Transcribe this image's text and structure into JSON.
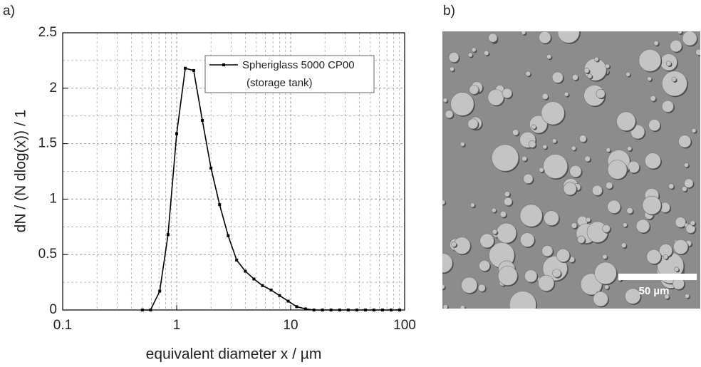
{
  "panels": [
    "a)",
    "b)"
  ],
  "chart_data": {
    "type": "line",
    "x_label": "equivalent diameter x / µm",
    "y_label": "dN / (N dlog(x)) / 1",
    "x": [
      0.5,
      0.59,
      0.71,
      0.84,
      1.0,
      1.19,
      1.41,
      1.68,
      2.0,
      2.38,
      2.83,
      3.36,
      4.0,
      4.76,
      5.66,
      6.73,
      8.0,
      9.51,
      11.3,
      13.5,
      16.0,
      19.0,
      22.6,
      26.9,
      32.0,
      38.1,
      45.3,
      53.8,
      64.0,
      76.1,
      90.5
    ],
    "series": [
      {
        "name": "Spheriglass 5000 CP00",
        "color": "#000000",
        "values": [
          0,
          0,
          0.17,
          0.68,
          1.59,
          2.18,
          2.16,
          1.71,
          1.28,
          0.95,
          0.67,
          0.45,
          0.35,
          0.28,
          0.22,
          0.18,
          0.13,
          0.08,
          0.03,
          0.01,
          0,
          0,
          0,
          0,
          0,
          0,
          0,
          0,
          0,
          0,
          0
        ]
      }
    ],
    "legend_note": "(storage tank)",
    "xlim": [
      0.1,
      100
    ],
    "xticks": [
      0.1,
      1,
      10,
      100
    ],
    "xlog": true,
    "ylim": [
      0,
      2.5
    ],
    "yticks": [
      0,
      0.5,
      1,
      1.5,
      2,
      2.5
    ],
    "grid": true,
    "legend": "upper right"
  },
  "image": {
    "scale_bar": "50 µm"
  }
}
